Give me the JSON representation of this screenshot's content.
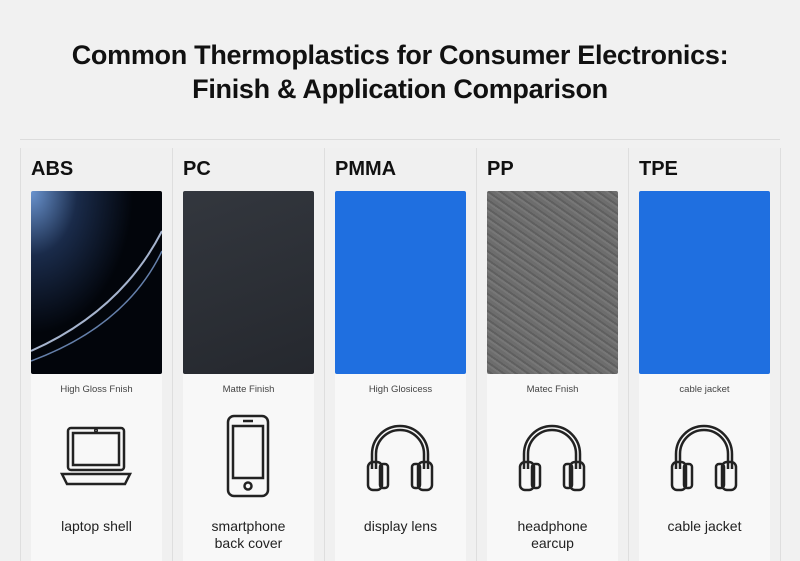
{
  "title_line1": "Common Thermoplastics for Consumer Electronics:",
  "title_line2": "Finish & Application Comparison",
  "materials": [
    {
      "name": "ABS",
      "finish": "High Gloss Fnish",
      "application": "laptop shell",
      "application2": "",
      "icon": "laptop-icon",
      "swatch_color": "#03060c"
    },
    {
      "name": "PC",
      "finish": "Matte Finish",
      "application": "smartphone",
      "application2": "back cover",
      "icon": "smartphone-icon",
      "swatch_color": "#2a2d33"
    },
    {
      "name": "PMMA",
      "finish": "High Glosicess",
      "application": "display lens",
      "application2": "",
      "icon": "headphones-icon",
      "swatch_color": "#1f6fe0"
    },
    {
      "name": "PP",
      "finish": "Matec Fnish",
      "application": "headphone",
      "application2": "earcup",
      "icon": "headphones-icon",
      "swatch_color": "#6e6e6e"
    },
    {
      "name": "TPE",
      "finish": "cable jacket",
      "application": "cable jacket",
      "application2": "",
      "icon": "headphones-icon",
      "swatch_color": "#1f6fe0"
    }
  ]
}
